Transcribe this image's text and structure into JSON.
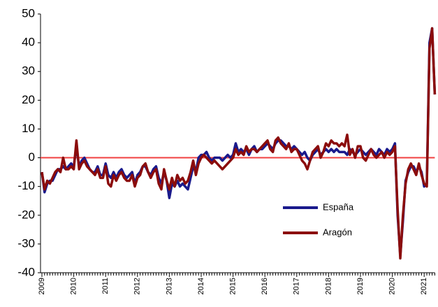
{
  "chart_data": {
    "type": "line",
    "categories": [
      "2009",
      null,
      null,
      null,
      null,
      null,
      null,
      null,
      null,
      null,
      null,
      null,
      "2010",
      null,
      null,
      null,
      null,
      null,
      null,
      null,
      null,
      null,
      null,
      null,
      "2011",
      null,
      null,
      null,
      null,
      null,
      null,
      null,
      null,
      null,
      null,
      null,
      "2012",
      null,
      null,
      null,
      null,
      null,
      null,
      null,
      null,
      null,
      null,
      null,
      "2013",
      null,
      null,
      null,
      null,
      null,
      null,
      null,
      null,
      null,
      null,
      null,
      "2014",
      null,
      null,
      null,
      null,
      null,
      null,
      null,
      null,
      null,
      null,
      null,
      "2015",
      null,
      null,
      null,
      null,
      null,
      null,
      null,
      null,
      null,
      null,
      null,
      "2016",
      null,
      null,
      null,
      null,
      null,
      null,
      null,
      null,
      null,
      null,
      null,
      "2017",
      null,
      null,
      null,
      null,
      null,
      null,
      null,
      null,
      null,
      null,
      null,
      "2018",
      null,
      null,
      null,
      null,
      null,
      null,
      null,
      null,
      null,
      null,
      null,
      "2019",
      null,
      null,
      null,
      null,
      null,
      null,
      null,
      null,
      null,
      null,
      null,
      "2020",
      null,
      null,
      null,
      null,
      null,
      null,
      null,
      null,
      null,
      null,
      null,
      "2021",
      null,
      null,
      null,
      null
    ],
    "series": [
      {
        "name": "España",
        "color": "#1a1a8c",
        "values": [
          -5,
          -12,
          -9,
          -8,
          -8,
          -6,
          -4,
          -4,
          -3,
          -4,
          -3,
          -2,
          -3,
          4,
          -3,
          -1,
          0,
          -2,
          -4,
          -5,
          -5,
          -3,
          -6,
          -6,
          -2,
          -6,
          -7,
          -5,
          -7,
          -5,
          -4,
          -6,
          -7,
          -6,
          -5,
          -9,
          -6,
          -5,
          -3,
          -3,
          -5,
          -6,
          -4,
          -3,
          -7,
          -9,
          -5,
          -8,
          -14,
          -9,
          -10,
          -8,
          -10,
          -9,
          -10,
          -11,
          -7,
          -3,
          -5,
          0,
          1,
          1,
          2,
          0,
          -1,
          0,
          0,
          0,
          -1,
          0,
          1,
          0,
          1,
          5,
          2,
          3,
          2,
          3,
          1,
          3,
          4,
          2,
          3,
          3,
          4,
          5,
          4,
          3,
          5,
          6,
          6,
          5,
          4,
          4,
          3,
          4,
          3,
          2,
          1,
          2,
          0,
          -1,
          1,
          2,
          3,
          1,
          2,
          3,
          2,
          3,
          2,
          3,
          2,
          2,
          2,
          1,
          3,
          2,
          1,
          2,
          3,
          2,
          1,
          2,
          3,
          2,
          1,
          3,
          2,
          1,
          3,
          2,
          3,
          5,
          -20,
          -34,
          -22,
          -8,
          -5,
          -3,
          -3,
          -5,
          -3,
          -5,
          -10,
          -9,
          40,
          45,
          22
        ]
      },
      {
        "name": "Aragón",
        "color": "#8b0c0c",
        "values": [
          -5,
          -11,
          -8,
          -9,
          -7,
          -5,
          -4,
          -5,
          0,
          -4,
          -4,
          -3,
          -4,
          6,
          -4,
          -2,
          -1,
          -3,
          -4,
          -5,
          -6,
          -4,
          -7,
          -7,
          -3,
          -9,
          -10,
          -6,
          -8,
          -6,
          -5,
          -7,
          -8,
          -8,
          -6,
          -10,
          -7,
          -6,
          -3,
          -2,
          -5,
          -7,
          -5,
          -4,
          -9,
          -11,
          -4,
          -8,
          -11,
          -7,
          -10,
          -6,
          -8,
          -7,
          -9,
          -8,
          -5,
          -1,
          -6,
          -2,
          0,
          1,
          0,
          -1,
          -2,
          -1,
          -2,
          -3,
          -4,
          -3,
          -2,
          -1,
          0,
          3,
          1,
          2,
          1,
          4,
          2,
          3,
          3,
          2,
          3,
          4,
          5,
          6,
          3,
          2,
          6,
          7,
          5,
          4,
          3,
          5,
          2,
          3,
          3,
          1,
          -1,
          -2,
          -4,
          -1,
          2,
          3,
          4,
          0,
          2,
          5,
          4,
          6,
          5,
          5,
          4,
          5,
          4,
          8,
          1,
          3,
          0,
          4,
          4,
          0,
          -1,
          1,
          3,
          1,
          0,
          1,
          2,
          0,
          2,
          1,
          2,
          4,
          -18,
          -35,
          -20,
          -9,
          -4,
          -2,
          -4,
          -6,
          -2,
          -6,
          -9,
          -10,
          38,
          45,
          22
        ]
      }
    ],
    "ylim": [
      -40,
      50
    ],
    "yticks": [
      -40,
      -30,
      -20,
      -10,
      0,
      10,
      20,
      30,
      40,
      50
    ],
    "reference_line": 0,
    "reference_color": "#f04040",
    "legend": "lower right"
  }
}
